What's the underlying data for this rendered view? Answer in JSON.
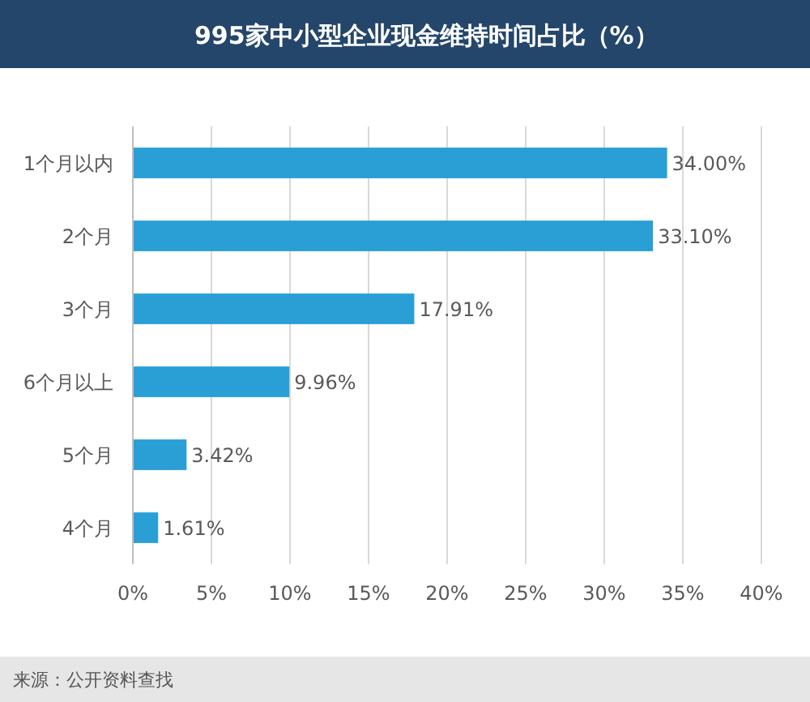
{
  "chart_data": {
    "type": "bar",
    "orientation": "horizontal",
    "title": "995家中小型企业现金维持时间占比（%）",
    "categories": [
      "1个月以内",
      "2个月",
      "3个月",
      "6个月以上",
      "5个月",
      "4个月"
    ],
    "values": [
      34.0,
      33.1,
      17.91,
      9.96,
      3.42,
      1.61
    ],
    "value_labels": [
      "34.00%",
      "33.10%",
      "17.91%",
      "9.96%",
      "3.42%",
      "1.61%"
    ],
    "color": "#2a9fd6",
    "xlim": [
      0,
      40
    ],
    "xticks": [
      {
        "value": 0,
        "label": "0%"
      },
      {
        "value": 5,
        "label": "5%"
      },
      {
        "value": 10,
        "label": "10%"
      },
      {
        "value": 15,
        "label": "15%"
      },
      {
        "value": 20,
        "label": "20%"
      },
      {
        "value": 25,
        "label": "25%"
      },
      {
        "value": 30,
        "label": "30%"
      },
      {
        "value": 35,
        "label": "35%"
      },
      {
        "value": 40,
        "label": "40%"
      }
    ],
    "grid": "x",
    "annotations": [
      "来源：公开资料查找"
    ]
  }
}
